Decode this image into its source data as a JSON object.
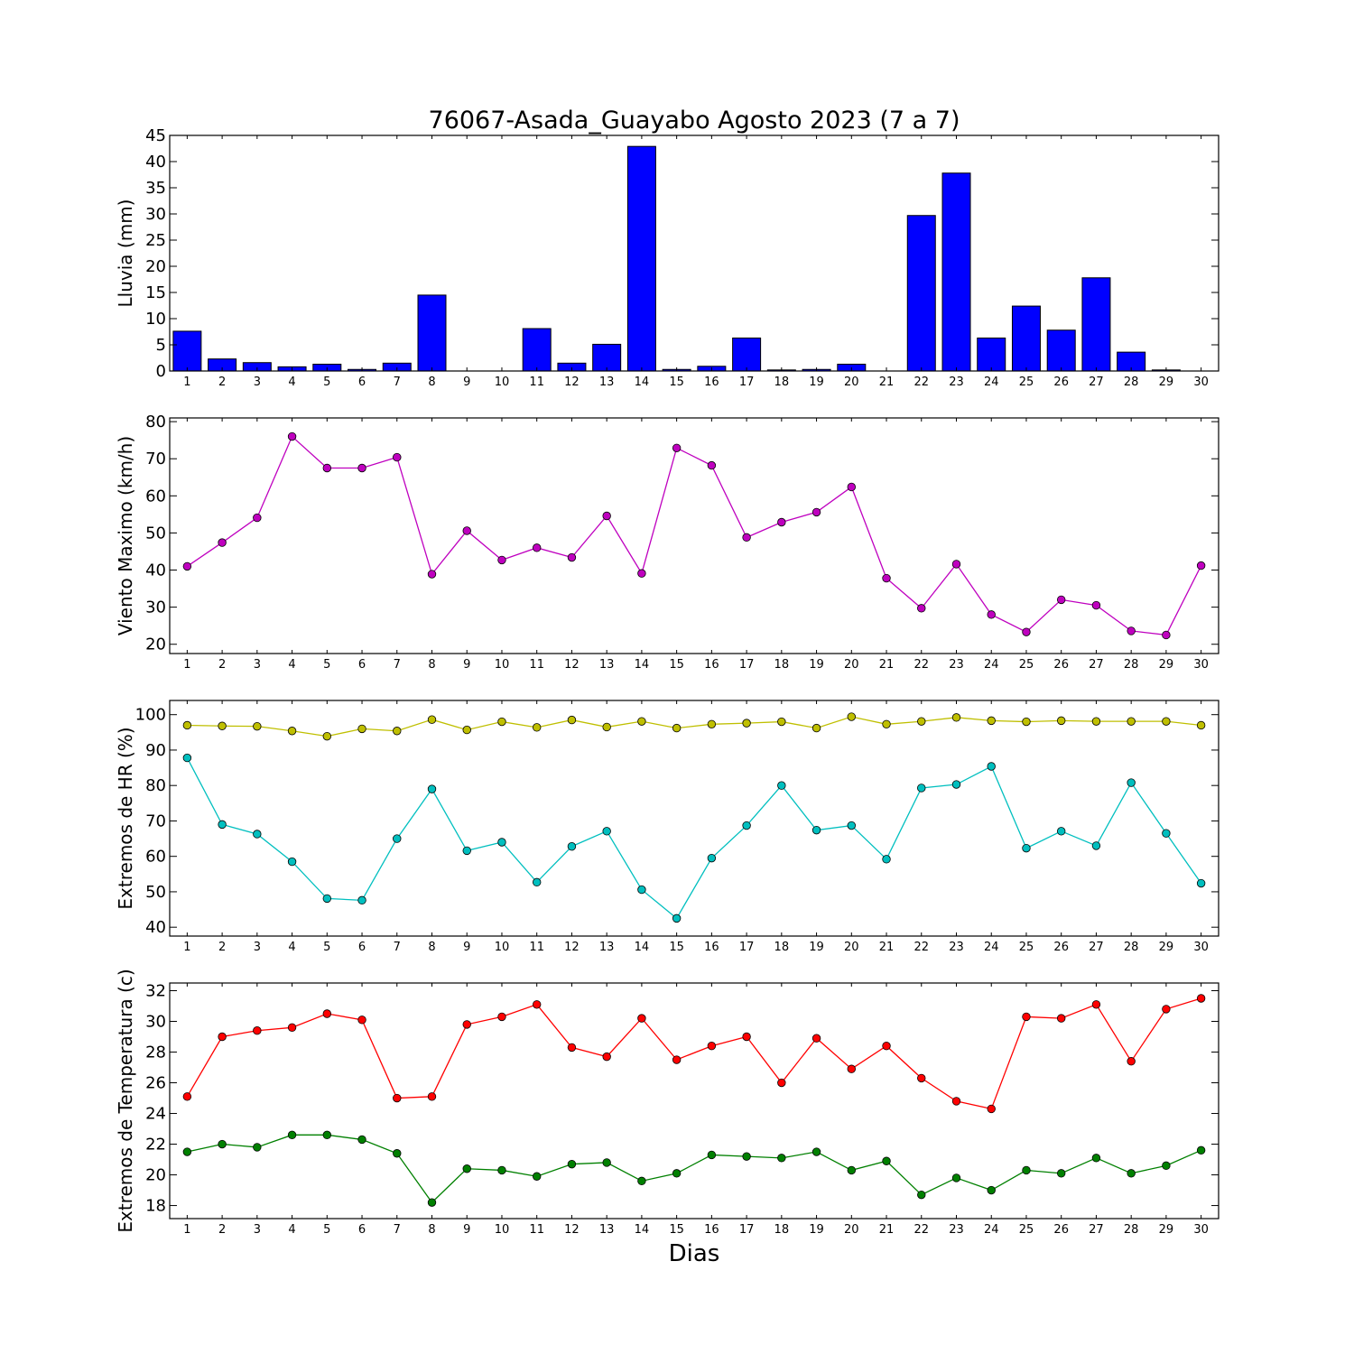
{
  "figure": {
    "title": "76067-Asada_Guayabo Agosto 2023  (7 a 7)",
    "xlabel": "Dias"
  },
  "chart_data": [
    {
      "type": "bar",
      "ylabel": "Lluvia (mm)",
      "x": [
        1,
        2,
        3,
        4,
        5,
        6,
        7,
        8,
        9,
        10,
        11,
        12,
        13,
        14,
        15,
        16,
        17,
        18,
        19,
        20,
        21,
        22,
        23,
        24,
        25,
        26,
        27,
        28,
        29,
        30
      ],
      "ylim": [
        0,
        45
      ],
      "yticks": [
        0,
        5,
        10,
        15,
        20,
        25,
        30,
        35,
        40,
        45
      ],
      "series": [
        {
          "color": "#0000ff",
          "values": [
            7.6,
            2.3,
            1.6,
            0.8,
            1.3,
            0.3,
            1.5,
            14.5,
            0,
            0,
            8.1,
            1.5,
            5.1,
            42.9,
            0.3,
            0.9,
            6.3,
            0.2,
            0.3,
            1.3,
            0,
            29.7,
            37.8,
            6.3,
            12.4,
            7.8,
            17.8,
            3.6,
            0.2,
            0
          ]
        }
      ]
    },
    {
      "type": "line",
      "ylabel": "Viento Maximo (km/h)",
      "x": [
        1,
        2,
        3,
        4,
        5,
        6,
        7,
        8,
        9,
        10,
        11,
        12,
        13,
        14,
        15,
        16,
        17,
        18,
        19,
        20,
        21,
        22,
        23,
        24,
        25,
        26,
        27,
        28,
        29,
        30
      ],
      "ylim": [
        17.5,
        81
      ],
      "yticks": [
        20,
        30,
        40,
        50,
        60,
        70,
        80
      ],
      "series": [
        {
          "color": "#bf00bf",
          "values": [
            41,
            47.4,
            54.1,
            76,
            67.5,
            67.5,
            70.4,
            38.9,
            50.6,
            42.7,
            46,
            43.4,
            54.6,
            39.1,
            72.9,
            68.2,
            48.8,
            52.9,
            55.6,
            62.4,
            37.8,
            29.7,
            41.6,
            28,
            23.3,
            32,
            30.5,
            23.6,
            22.5,
            41.2
          ]
        }
      ]
    },
    {
      "type": "line",
      "ylabel": "Extremos de HR (%)",
      "x": [
        1,
        2,
        3,
        4,
        5,
        6,
        7,
        8,
        9,
        10,
        11,
        12,
        13,
        14,
        15,
        16,
        17,
        18,
        19,
        20,
        21,
        22,
        23,
        24,
        25,
        26,
        27,
        28,
        29,
        30
      ],
      "ylim": [
        37.5,
        104
      ],
      "yticks": [
        40,
        50,
        60,
        70,
        80,
        90,
        100
      ],
      "series": [
        {
          "color": "#bfbf00",
          "values": [
            97,
            96.8,
            96.7,
            95.4,
            93.9,
            96,
            95.4,
            98.6,
            95.7,
            98,
            96.4,
            98.5,
            96.5,
            98.1,
            96.2,
            97.3,
            97.6,
            98,
            96.2,
            99.4,
            97.3,
            98.1,
            99.2,
            98.3,
            98,
            98.3,
            98.1,
            98.1,
            98.1,
            97
          ]
        },
        {
          "color": "#00bfbf",
          "values": [
            87.8,
            69,
            66.3,
            58.5,
            48.1,
            47.6,
            65,
            79,
            61.6,
            64,
            52.7,
            62.8,
            67.1,
            50.6,
            42.5,
            59.5,
            68.7,
            80,
            67.4,
            68.7,
            59.2,
            79.3,
            80.3,
            85.4,
            62.3,
            67.1,
            63,
            80.8,
            66.5,
            52.4
          ]
        }
      ]
    },
    {
      "type": "line",
      "ylabel": "Extremos de Temperatura (c)",
      "x": [
        1,
        2,
        3,
        4,
        5,
        6,
        7,
        8,
        9,
        10,
        11,
        12,
        13,
        14,
        15,
        16,
        17,
        18,
        19,
        20,
        21,
        22,
        23,
        24,
        25,
        26,
        27,
        28,
        29,
        30
      ],
      "ylim": [
        17.15,
        32.5
      ],
      "yticks": [
        18,
        20,
        22,
        24,
        26,
        28,
        30,
        32
      ],
      "series": [
        {
          "color": "#ff0000",
          "values": [
            25.1,
            29,
            29.4,
            29.6,
            30.5,
            30.1,
            25,
            25.1,
            29.8,
            30.3,
            31.1,
            28.3,
            27.7,
            30.2,
            27.5,
            28.4,
            29,
            26,
            28.9,
            26.9,
            28.4,
            26.3,
            24.8,
            24.3,
            30.3,
            30.2,
            31.1,
            27.4,
            30.8,
            31.5
          ]
        },
        {
          "color": "#008000",
          "values": [
            21.5,
            22,
            21.8,
            22.6,
            22.6,
            22.3,
            21.4,
            18.2,
            20.4,
            20.3,
            19.9,
            20.7,
            20.8,
            19.6,
            20.1,
            21.3,
            21.2,
            21.1,
            21.5,
            20.3,
            20.9,
            18.7,
            19.8,
            19,
            20.3,
            20.1,
            21.1,
            20.1,
            20.6,
            21.6
          ]
        }
      ]
    }
  ]
}
